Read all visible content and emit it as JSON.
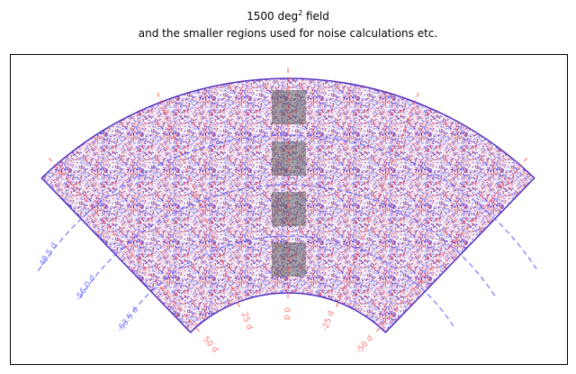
{
  "title": {
    "main": "1500 deg",
    "superscript": "2",
    "suffix": " field"
  },
  "subtitle": "and the smaller regions used for noise calculations etc.",
  "dec_labels": [
    "-48.5 d",
    "-56.0 d",
    "-63.5 d"
  ],
  "ra_labels": [
    "50 d",
    "25 d",
    "0 d",
    "-25 d",
    "-50 d"
  ]
}
